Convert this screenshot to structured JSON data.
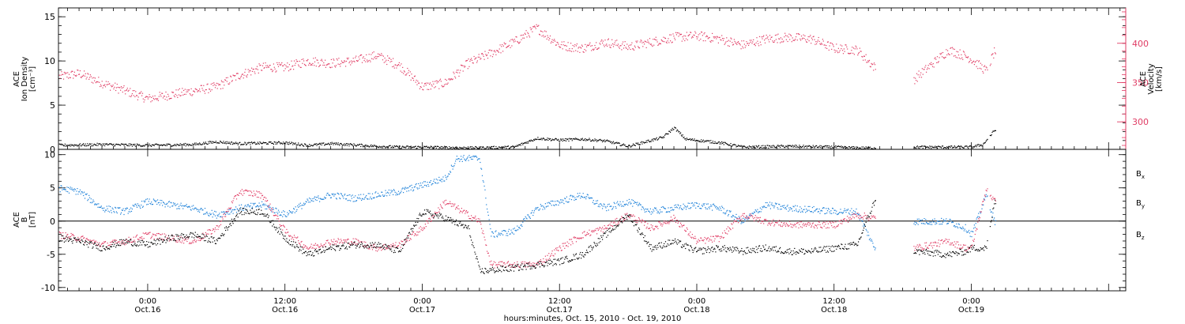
{
  "xaxis": {
    "title": "hours:minutes, Oct. 15, 2010 - Oct. 19, 2010",
    "range_hours": [
      -7.8,
      85.5
    ],
    "ticks": [
      {
        "hour": 0,
        "time": "0:00",
        "date": "Oct.16"
      },
      {
        "hour": 12,
        "time": "12:00",
        "date": "Oct.16"
      },
      {
        "hour": 24,
        "time": "0:00",
        "date": "Oct.17"
      },
      {
        "hour": 36,
        "time": "12:00",
        "date": "Oct.17"
      },
      {
        "hour": 48,
        "time": "0:00",
        "date": "Oct.18"
      },
      {
        "hour": 60,
        "time": "12:00",
        "date": "Oct.18"
      },
      {
        "hour": 72,
        "time": "0:00",
        "date": "Oct.19"
      }
    ]
  },
  "colors": {
    "black": "#000000",
    "red": "#e03c64",
    "blue": "#1a7fd8"
  },
  "chart_data": [
    {
      "type": "scatter",
      "panel": "plasma",
      "left_axis": {
        "label_lines": [
          "ACE",
          "Ion Density",
          "[cm⁻³]"
        ],
        "ylim": [
          0,
          16
        ],
        "ticks": [
          0,
          5,
          10,
          15
        ]
      },
      "right_axis": {
        "label_lines": [
          "ACE",
          "Velocity",
          "[km/s]"
        ],
        "ylim": [
          265,
          445
        ],
        "ticks": [
          300,
          350,
          400
        ],
        "color": "#e03c64"
      },
      "series": [
        {
          "axis": "left",
          "color": "#000000",
          "x": [
            -7.8,
            -4,
            0,
            4,
            6,
            8,
            12,
            14,
            16,
            20,
            22,
            24,
            28,
            32,
            34,
            36,
            38,
            40,
            42,
            45,
            46,
            47,
            50,
            52,
            56,
            60,
            62,
            63.5,
            67,
            72,
            73,
            74
          ],
          "y": [
            0.5,
            0.6,
            0.5,
            0.6,
            0.9,
            0.7,
            0.8,
            0.5,
            0.7,
            0.4,
            0.3,
            0.3,
            0.2,
            0.3,
            1.3,
            1.1,
            1.2,
            1.0,
            0.4,
            1.4,
            2.5,
            1.2,
            0.8,
            0.3,
            0.4,
            0.3,
            0.2,
            0.2,
            0.3,
            0.3,
            0.6,
            2.2
          ]
        },
        {
          "axis": "right",
          "color": "#e03c64",
          "x": [
            -7.8,
            -6,
            -4,
            -2,
            0,
            2,
            4,
            6,
            8,
            10,
            12,
            14,
            16,
            18,
            20,
            22,
            24,
            26,
            28,
            30,
            32,
            34,
            36,
            38,
            40,
            42,
            44,
            46,
            48,
            50,
            52,
            54,
            56,
            58,
            60,
            62,
            63.5,
            67,
            70,
            71.5,
            72,
            73.3,
            74
          ],
          "y": [
            358,
            362,
            350,
            340,
            330,
            335,
            340,
            345,
            360,
            370,
            370,
            378,
            375,
            378,
            385,
            372,
            345,
            350,
            375,
            388,
            402,
            420,
            398,
            394,
            402,
            396,
            402,
            408,
            410,
            406,
            398,
            406,
            408,
            406,
            394,
            392,
            370,
            355,
            392,
            384,
            380,
            365,
            390
          ]
        }
      ]
    },
    {
      "type": "scatter",
      "panel": "magnetic-field",
      "left_axis": {
        "label_lines": [
          "ACE",
          "B",
          "[nT]"
        ],
        "ylim": [
          -10.5,
          10.8
        ],
        "ticks": [
          -10,
          -5,
          0,
          5,
          10
        ]
      },
      "zero_line": true,
      "legend": [
        "B",
        "B",
        "B"
      ],
      "legend_subscripts": [
        "x",
        "y",
        "z"
      ],
      "series": [
        {
          "name": "Bx",
          "color": "#000000",
          "x": [
            -7.8,
            -6,
            -4,
            -2,
            0,
            2,
            4,
            6,
            8,
            10,
            12,
            14,
            16,
            18,
            20,
            22,
            24,
            26,
            28,
            29,
            32,
            34,
            36,
            38,
            40,
            42,
            44,
            46,
            48,
            50,
            52,
            54,
            56,
            58,
            60,
            62,
            63.5,
            67,
            70,
            71.5,
            72,
            73.3,
            74
          ],
          "y": [
            -2.5,
            -3.0,
            -4.0,
            -3.0,
            -3.5,
            -2.5,
            -2.0,
            -3.0,
            1.5,
            1.5,
            -2.5,
            -5.0,
            -4.0,
            -3.5,
            -3.5,
            -4.5,
            1.5,
            0.5,
            -1.0,
            -7.5,
            -7.0,
            -6.5,
            -6.0,
            -5.0,
            -2.0,
            1.0,
            -4.0,
            -3.0,
            -4.5,
            -4.0,
            -4.5,
            -4.0,
            -4.5,
            -4.5,
            -4.0,
            -3.5,
            3.0,
            -4.5,
            -5.0,
            -4.5,
            -4.0,
            -4.0,
            3.0
          ]
        },
        {
          "name": "By",
          "color": "#1a7fd8",
          "x": [
            -7.8,
            -6,
            -4,
            -2,
            0,
            2,
            4,
            6,
            8,
            10,
            12,
            14,
            16,
            18,
            20,
            22,
            24,
            26,
            27,
            29,
            30,
            32,
            34,
            36,
            38,
            40,
            42,
            44,
            46,
            48,
            50,
            52,
            54,
            56,
            58,
            60,
            62,
            63.5,
            67,
            70,
            71.5,
            72,
            73.3,
            74
          ],
          "y": [
            5.0,
            4.5,
            2.0,
            1.5,
            3.0,
            2.5,
            2.0,
            1.0,
            2.0,
            2.5,
            1.0,
            3.0,
            4.0,
            3.5,
            4.0,
            4.5,
            5.5,
            6.5,
            9.5,
            9.5,
            -2.0,
            -1.5,
            2.0,
            3.0,
            4.0,
            2.0,
            3.0,
            1.5,
            2.0,
            2.5,
            2.0,
            0.0,
            2.5,
            2.0,
            1.8,
            1.5,
            1.5,
            -4.0,
            0.0,
            0.0,
            -1.0,
            -2.0,
            4.0,
            0.0
          ]
        },
        {
          "name": "Bz",
          "color": "#e03c64",
          "x": [
            -7.8,
            -6,
            -4,
            -2,
            0,
            2,
            4,
            6,
            8,
            10,
            12,
            14,
            16,
            18,
            20,
            22,
            24,
            26,
            27,
            29,
            30,
            32,
            34,
            36,
            38,
            40,
            42,
            44,
            46,
            48,
            50,
            52,
            54,
            56,
            58,
            60,
            62,
            63.5,
            67,
            70,
            71.5,
            72,
            73.3,
            74
          ],
          "y": [
            -2.0,
            -2.5,
            -3.5,
            -3.0,
            -2.0,
            -2.5,
            -3.0,
            -1.0,
            4.5,
            4.0,
            -1.5,
            -4.0,
            -3.0,
            -3.0,
            -4.0,
            -3.5,
            -1.0,
            3.0,
            2.0,
            0.0,
            -6.5,
            -6.5,
            -6.5,
            -4.0,
            -2.0,
            -1.0,
            1.0,
            -1.0,
            0.5,
            -3.0,
            -2.5,
            1.0,
            0.0,
            -0.5,
            -0.5,
            -0.5,
            1.0,
            0.5,
            -4.0,
            -3.0,
            -4.0,
            -4.0,
            5.0,
            3.0
          ]
        }
      ]
    }
  ]
}
